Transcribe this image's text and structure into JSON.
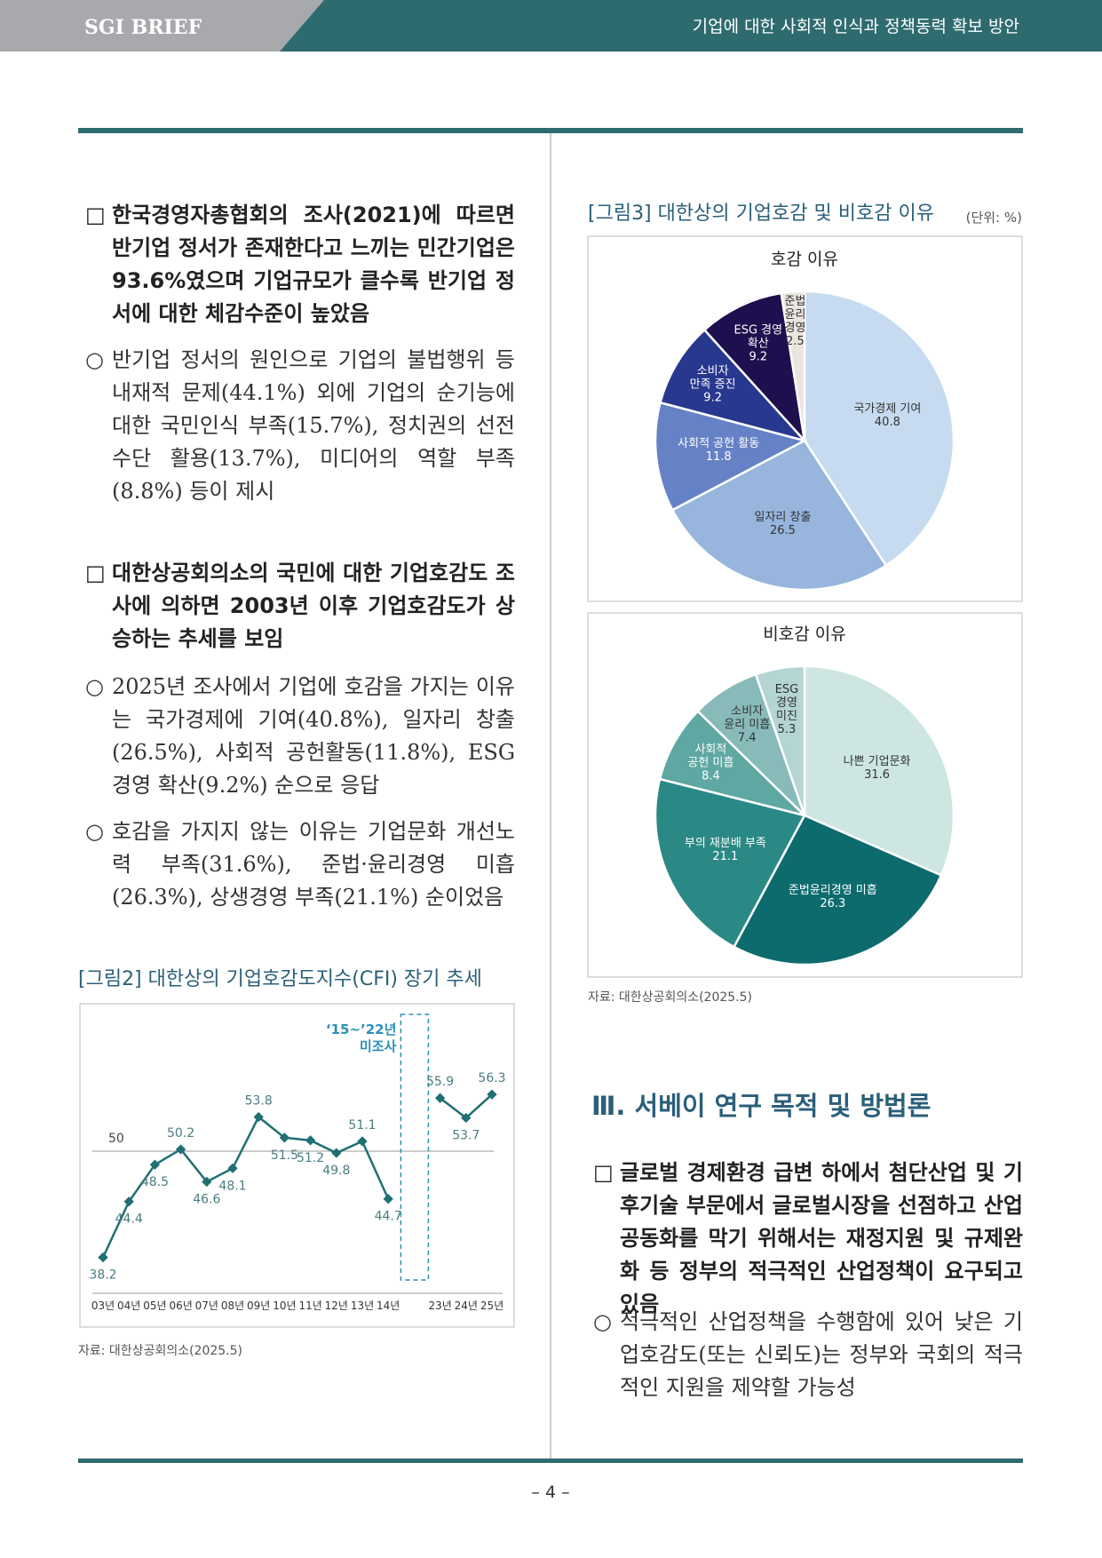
{
  "header": {
    "brand": "SGI BRIEF",
    "title": "기업에 대한 사회적 인식과 정책동력 확보 방안"
  },
  "left_column": {
    "items": [
      {
        "marker": "□",
        "text": "한국경영자총협회의 조사(2021)에 따르면 반기업 정서가 존재한다고 느끼는 민간기업은 93.6%였으며 기업규모가 클수록 반기업 정서에 대한 체감수준이 높았음"
      },
      {
        "marker": "○",
        "text": "반기업 정서의 원인으로 기업의 불법행위 등 내재적 문제(44.1%) 외에 기업의 순기능에 대한 국민인식 부족(15.7%), 정치권의 선전수단 활용(13.7%), 미디어의 역할 부족(8.8%) 등이 제시"
      },
      {
        "marker": "□",
        "text": "대한상공회의소의 국민에 대한 기업호감도 조사에 의하면 2003년 이후 기업호감도가 상승하는 추세를 보임"
      },
      {
        "marker": "○",
        "text": "2025년 조사에서 기업에 호감을 가지는 이유는 국가경제에 기여(40.8%), 일자리 창출(26.5%), 사회적 공헌활동(11.8%), ESG 경영 확산(9.2%) 순으로 응답"
      },
      {
        "marker": "○",
        "text": "호감을 가지지 않는 이유는 기업문화 개선노력 부족(31.6%), 준법·윤리경영 미흡(26.3%), 상생경영 부족(21.1%) 순이었음"
      }
    ]
  },
  "chart_data": [
    {
      "type": "line",
      "title": "[그림2] 대한상의 기업호감도지수(CFI) 장기 추세",
      "categories": [
        "03년",
        "04년",
        "05년",
        "06년",
        "07년",
        "08년",
        "09년",
        "10년",
        "11년",
        "12년",
        "13년",
        "14년",
        null,
        "23년",
        "24년",
        "25년"
      ],
      "values": [
        38.2,
        44.4,
        48.5,
        50.2,
        46.6,
        48.1,
        53.8,
        51.5,
        51.2,
        49.8,
        51.1,
        44.7,
        null,
        55.9,
        53.7,
        56.3
      ],
      "color": "#1f6f73",
      "ylim": [
        35,
        65
      ],
      "reference_line": 50,
      "annotation": "‘15~’22년\n미조사",
      "source": "자료: 대한상공회의소(2025.5)"
    },
    {
      "type": "pie",
      "title": "호감 이유",
      "categories": [
        "국가경제 기여",
        "일자리 창출",
        "사회적 공헌 활동",
        "소비자\n만족 증진",
        "ESG 경영\n확산",
        "준법\n윤리\n경영"
      ],
      "values": [
        40.8,
        26.5,
        11.8,
        9.2,
        9.2,
        2.5
      ],
      "colors": [
        "#c6dbef",
        "#97b5dd",
        "#6682c6",
        "#28388f",
        "#1e0f4e",
        "#e9e5df"
      ]
    },
    {
      "type": "pie",
      "title": "비호감 이유",
      "categories": [
        "나쁜 기업문화",
        "준법윤리경영 미흡",
        "부의 재분배 부족",
        "사회적\n공헌 미흡",
        "소비자\n윤리 미흡",
        "ESG\n경영\n미진"
      ],
      "values": [
        31.6,
        26.3,
        21.1,
        8.4,
        7.4,
        5.3
      ],
      "colors": [
        "#cde6e1",
        "#0d6b6e",
        "#2a8985",
        "#5fa7a2",
        "#88baba",
        "#b5d4d4"
      ]
    }
  ],
  "figure3": {
    "title": "[그림3] 대한상의 기업호감 및 비호감 이유",
    "unit": "(단위: %)",
    "source": "자료: 대한상공회의소(2025.5)"
  },
  "right_column": {
    "heading": "Ⅲ. 서베이 연구 목적 및 방법론",
    "items": [
      {
        "marker": "□",
        "text": "글로벌 경제환경 급변 하에서 첨단산업 및 기후기술 부문에서 글로벌시장을 선점하고 산업공동화를 막기 위해서는 재정지원 및 규제완화 등 정부의 적극적인 산업정책이 요구되고 있음"
      },
      {
        "marker": "○",
        "text": "적극적인 산업정책을 수행함에 있어 낮은 기업호감도(또는 신뢰도)는 정부와 국회의 적극적인 지원을 제약할 가능성"
      }
    ]
  },
  "page_number": "– 4 –"
}
